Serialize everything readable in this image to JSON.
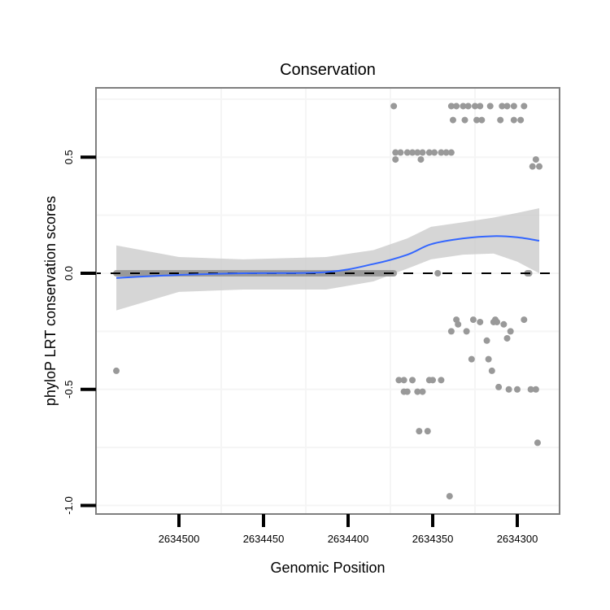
{
  "chart_data": {
    "type": "scatter",
    "title": "Conservation",
    "xlabel": "Genomic Position",
    "ylabel": "phyloP LRT conservation scores",
    "x_reversed": true,
    "xlim": [
      2634550,
      2634275
    ],
    "ylim": [
      -1.03,
      0.8
    ],
    "x_ticks": [
      2634500,
      2634450,
      2634400,
      2634350,
      2634300
    ],
    "x_tick_labels": [
      "2634500",
      "2634450",
      "2634400",
      "2634350",
      "2634300"
    ],
    "y_ticks": [
      -1.0,
      -0.5,
      0.0,
      0.5
    ],
    "y_tick_labels": [
      "-1.0",
      "-0.5",
      "0.0",
      "0.5"
    ],
    "y_minor_gridlines": [
      -0.75,
      -0.25,
      0.25,
      0.75
    ],
    "grid": true,
    "reference_line": {
      "y": 0,
      "style": "dashed",
      "color": "#000000"
    },
    "colors": {
      "points": "#999999",
      "smooth": "#3366ff",
      "ribbon": "#cccccc"
    },
    "zero_band": {
      "x_from": 2634537,
      "x_to": 2634373,
      "step": 1,
      "y": 0
    },
    "points": [
      {
        "x": 2634537,
        "y": -0.42
      },
      {
        "x": 2634373,
        "y": 0.72
      },
      {
        "x": 2634339,
        "y": 0.72
      },
      {
        "x": 2634336,
        "y": 0.72
      },
      {
        "x": 2634332,
        "y": 0.72
      },
      {
        "x": 2634329,
        "y": 0.72
      },
      {
        "x": 2634325,
        "y": 0.72
      },
      {
        "x": 2634322,
        "y": 0.72
      },
      {
        "x": 2634316,
        "y": 0.72
      },
      {
        "x": 2634309,
        "y": 0.72
      },
      {
        "x": 2634306,
        "y": 0.72
      },
      {
        "x": 2634302,
        "y": 0.72
      },
      {
        "x": 2634296,
        "y": 0.72
      },
      {
        "x": 2634338,
        "y": 0.66
      },
      {
        "x": 2634331,
        "y": 0.66
      },
      {
        "x": 2634324,
        "y": 0.66
      },
      {
        "x": 2634321,
        "y": 0.66
      },
      {
        "x": 2634310,
        "y": 0.66
      },
      {
        "x": 2634302,
        "y": 0.66
      },
      {
        "x": 2634298,
        "y": 0.66
      },
      {
        "x": 2634372,
        "y": 0.52
      },
      {
        "x": 2634369,
        "y": 0.52
      },
      {
        "x": 2634365,
        "y": 0.52
      },
      {
        "x": 2634362,
        "y": 0.52
      },
      {
        "x": 2634359,
        "y": 0.52
      },
      {
        "x": 2634356,
        "y": 0.52
      },
      {
        "x": 2634352,
        "y": 0.52
      },
      {
        "x": 2634349,
        "y": 0.52
      },
      {
        "x": 2634345,
        "y": 0.52
      },
      {
        "x": 2634342,
        "y": 0.52
      },
      {
        "x": 2634339,
        "y": 0.52
      },
      {
        "x": 2634372,
        "y": 0.49
      },
      {
        "x": 2634357,
        "y": 0.49
      },
      {
        "x": 2634289,
        "y": 0.49
      },
      {
        "x": 2634291,
        "y": 0.46
      },
      {
        "x": 2634287,
        "y": 0.46
      },
      {
        "x": 2634347,
        "y": 0.0
      },
      {
        "x": 2634294,
        "y": 0.0
      },
      {
        "x": 2634293,
        "y": 0.0
      },
      {
        "x": 2634336,
        "y": -0.2
      },
      {
        "x": 2634335,
        "y": -0.22
      },
      {
        "x": 2634326,
        "y": -0.2
      },
      {
        "x": 2634322,
        "y": -0.21
      },
      {
        "x": 2634313,
        "y": -0.2
      },
      {
        "x": 2634314,
        "y": -0.21
      },
      {
        "x": 2634312,
        "y": -0.21
      },
      {
        "x": 2634308,
        "y": -0.22
      },
      {
        "x": 2634296,
        "y": -0.2
      },
      {
        "x": 2634339,
        "y": -0.25
      },
      {
        "x": 2634330,
        "y": -0.25
      },
      {
        "x": 2634304,
        "y": -0.25
      },
      {
        "x": 2634318,
        "y": -0.29
      },
      {
        "x": 2634306,
        "y": -0.28
      },
      {
        "x": 2634327,
        "y": -0.37
      },
      {
        "x": 2634317,
        "y": -0.37
      },
      {
        "x": 2634315,
        "y": -0.42
      },
      {
        "x": 2634311,
        "y": -0.49
      },
      {
        "x": 2634305,
        "y": -0.5
      },
      {
        "x": 2634300,
        "y": -0.5
      },
      {
        "x": 2634292,
        "y": -0.5
      },
      {
        "x": 2634289,
        "y": -0.5
      },
      {
        "x": 2634370,
        "y": -0.46
      },
      {
        "x": 2634367,
        "y": -0.46
      },
      {
        "x": 2634362,
        "y": -0.46
      },
      {
        "x": 2634352,
        "y": -0.46
      },
      {
        "x": 2634350,
        "y": -0.46
      },
      {
        "x": 2634345,
        "y": -0.46
      },
      {
        "x": 2634367,
        "y": -0.51
      },
      {
        "x": 2634365,
        "y": -0.51
      },
      {
        "x": 2634359,
        "y": -0.51
      },
      {
        "x": 2634356,
        "y": -0.51
      },
      {
        "x": 2634358,
        "y": -0.68
      },
      {
        "x": 2634353,
        "y": -0.68
      },
      {
        "x": 2634288,
        "y": -0.73
      },
      {
        "x": 2634340,
        "y": -0.96
      }
    ],
    "smooth": [
      {
        "x": 2634537,
        "y": -0.02,
        "lo": -0.16,
        "hi": 0.12
      },
      {
        "x": 2634500,
        "y": -0.007,
        "lo": -0.08,
        "hi": 0.07
      },
      {
        "x": 2634462,
        "y": 0.0,
        "lo": -0.07,
        "hi": 0.06
      },
      {
        "x": 2634413,
        "y": 0.005,
        "lo": -0.07,
        "hi": 0.07
      },
      {
        "x": 2634385,
        "y": 0.04,
        "lo": -0.035,
        "hi": 0.1
      },
      {
        "x": 2634365,
        "y": 0.08,
        "lo": 0.02,
        "hi": 0.15
      },
      {
        "x": 2634351,
        "y": 0.125,
        "lo": 0.06,
        "hi": 0.2
      },
      {
        "x": 2634332,
        "y": 0.15,
        "lo": 0.08,
        "hi": 0.22
      },
      {
        "x": 2634314,
        "y": 0.16,
        "lo": 0.085,
        "hi": 0.24
      },
      {
        "x": 2634300,
        "y": 0.155,
        "lo": 0.05,
        "hi": 0.26
      },
      {
        "x": 2634287,
        "y": 0.14,
        "lo": 0.0,
        "hi": 0.28
      }
    ]
  }
}
